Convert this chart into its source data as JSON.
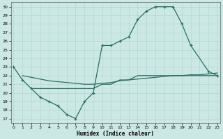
{
  "xlabel": "Humidex (Indice chaleur)",
  "bg_color": "#cce8e4",
  "grid_color": "#aad4ce",
  "line_color": "#2a6e65",
  "xlim": [
    -0.3,
    23.3
  ],
  "ylim": [
    16.5,
    30.5
  ],
  "yticks": [
    17,
    18,
    19,
    20,
    21,
    22,
    23,
    24,
    25,
    26,
    27,
    28,
    29,
    30
  ],
  "xticks": [
    0,
    1,
    2,
    3,
    4,
    5,
    6,
    7,
    8,
    9,
    10,
    11,
    12,
    13,
    14,
    15,
    16,
    17,
    18,
    19,
    20,
    21,
    22,
    23
  ],
  "line1_x": [
    0,
    1,
    2,
    3,
    4,
    5,
    6,
    7,
    8,
    9,
    10,
    11,
    12,
    13,
    14,
    15,
    16,
    17,
    18,
    19,
    20,
    22,
    23
  ],
  "line1_y": [
    23,
    21.5,
    20.5,
    19.5,
    19.0,
    18.5,
    17.5,
    17.0,
    19.0,
    20.0,
    25.5,
    25.5,
    26.0,
    26.5,
    28.5,
    29.5,
    30.0,
    30.0,
    30.0,
    28.0,
    25.5,
    22.5,
    22.0
  ],
  "line2_x": [
    1,
    2,
    3,
    4,
    5,
    6,
    7,
    8,
    9,
    10,
    11,
    12,
    13,
    14,
    15,
    16,
    17,
    18,
    19,
    20,
    21,
    22,
    23
  ],
  "line2_y": [
    22.0,
    21.8,
    21.6,
    21.4,
    21.3,
    21.2,
    21.1,
    21.0,
    21.0,
    21.1,
    21.2,
    21.4,
    21.5,
    21.6,
    21.7,
    21.8,
    21.9,
    22.0,
    22.0,
    22.1,
    22.1,
    22.2,
    22.3
  ],
  "line3_x": [
    2,
    3,
    4,
    5,
    6,
    7,
    8,
    9,
    10,
    11,
    12,
    13,
    14,
    15,
    16,
    17,
    18,
    19,
    20,
    21,
    22,
    23
  ],
  "line3_y": [
    20.5,
    20.5,
    20.5,
    20.5,
    20.5,
    20.5,
    20.5,
    20.5,
    21.0,
    21.0,
    21.5,
    21.5,
    22.0,
    22.0,
    22.0,
    22.0,
    22.0,
    22.0,
    22.0,
    22.0,
    22.0,
    22.0
  ]
}
